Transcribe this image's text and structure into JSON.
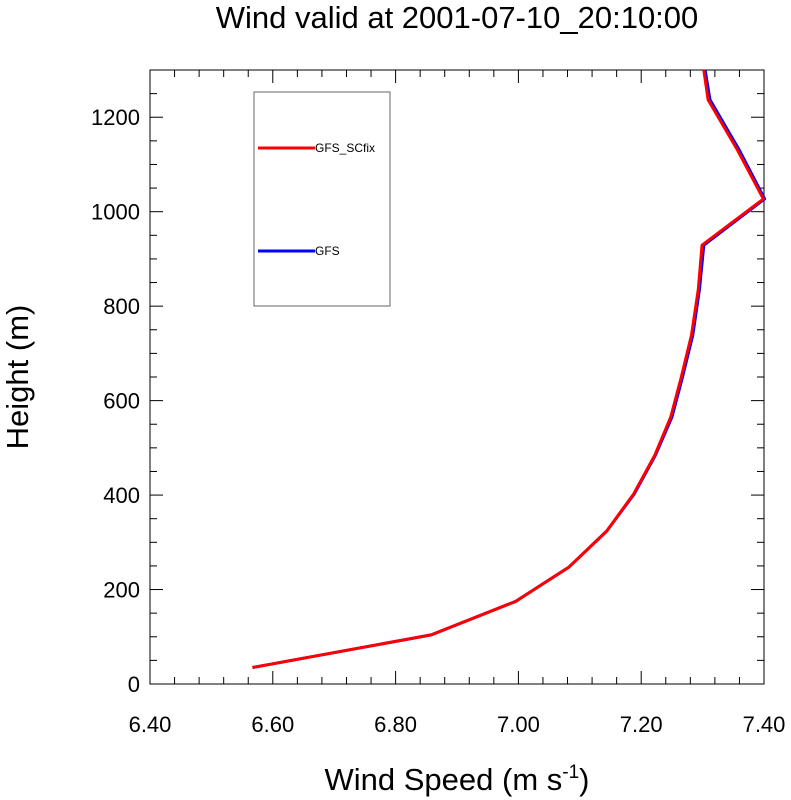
{
  "chart_data": {
    "type": "line",
    "title": "Wind valid at 2001-07-10_20:10:00",
    "xlabel": "Wind Speed (m s",
    "xlabel_sup": "-1",
    "xlabel_close": ")",
    "ylabel": "Height (m)",
    "xlim": [
      6.4,
      7.4
    ],
    "ylim": [
      0,
      1300
    ],
    "x_ticks": [
      6.4,
      6.6,
      6.8,
      7.0,
      7.2,
      7.4
    ],
    "x_tick_labels": [
      "6.40",
      "6.60",
      "6.80",
      "7.00",
      "7.20",
      "7.40"
    ],
    "y_ticks": [
      0,
      200,
      400,
      600,
      800,
      1000,
      1200
    ],
    "y_tick_labels": [
      "0",
      "200",
      "400",
      "600",
      "800",
      "1000",
      "1200"
    ],
    "grid": false,
    "legend_position": "top-left",
    "series": [
      {
        "name": "GFS_SCfix",
        "color": "#ff0000",
        "x": [
          6.567,
          6.858,
          6.996,
          7.082,
          7.144,
          7.188,
          7.222,
          7.248,
          7.265,
          7.282,
          7.293,
          7.299,
          7.399,
          7.357,
          7.309,
          7.302
        ],
        "y": [
          35,
          104,
          175,
          247,
          324,
          403,
          484,
          565,
          648,
          739,
          836,
          929,
          1027,
          1130,
          1237,
          1300
        ]
      },
      {
        "name": "GFS",
        "color": "#0000ff",
        "x": [
          6.567,
          6.858,
          6.996,
          7.082,
          7.144,
          7.189,
          7.223,
          7.25,
          7.267,
          7.284,
          7.295,
          7.302,
          7.401,
          7.36,
          7.312,
          7.304
        ],
        "y": [
          35,
          104,
          175,
          247,
          324,
          403,
          484,
          565,
          648,
          739,
          836,
          929,
          1027,
          1130,
          1237,
          1300
        ]
      }
    ]
  }
}
